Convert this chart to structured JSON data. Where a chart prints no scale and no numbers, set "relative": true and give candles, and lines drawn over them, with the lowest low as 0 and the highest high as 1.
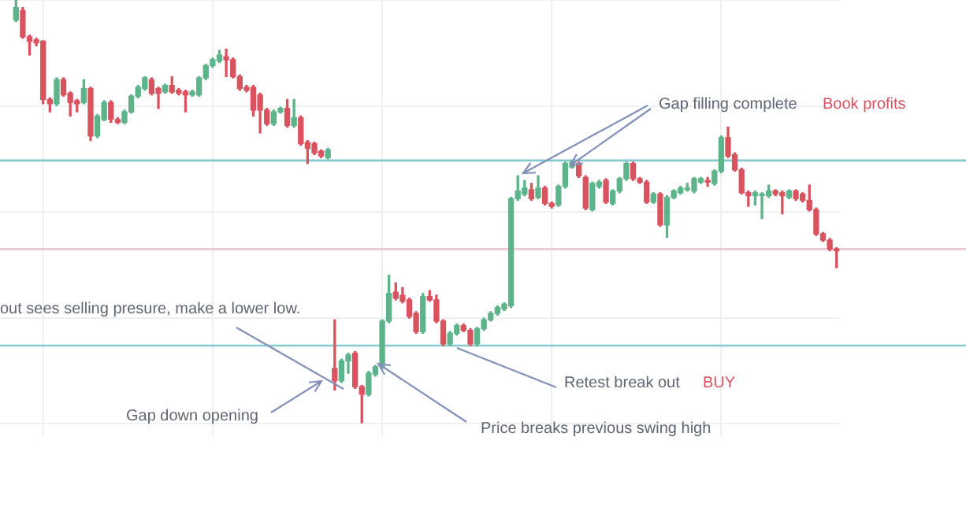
{
  "chart_data": {
    "type": "candlestick",
    "relative": true,
    "grid": true,
    "legend": false,
    "tick_labels": false,
    "categories": [
      null,
      null,
      null,
      null,
      null,
      null,
      null,
      null,
      null,
      null,
      null,
      null,
      null,
      null,
      null,
      null,
      null,
      null,
      null,
      null,
      null,
      null,
      null,
      null,
      null,
      null,
      null,
      null,
      null,
      null,
      null,
      null,
      null,
      null,
      null,
      null,
      null,
      null,
      null,
      null,
      null,
      null,
      null,
      null,
      null,
      null,
      null,
      null,
      null,
      null,
      null,
      null,
      null,
      null,
      null,
      null,
      null,
      null,
      null,
      null,
      null,
      null,
      null,
      null,
      null,
      null,
      null,
      null,
      null,
      null,
      null,
      null,
      null,
      null,
      null,
      null,
      null,
      null,
      null,
      null,
      null,
      null,
      null,
      null,
      null,
      null,
      null,
      null,
      null,
      null,
      null,
      null,
      null,
      null,
      null,
      null,
      null,
      null,
      null,
      null,
      null,
      null,
      null,
      null,
      null,
      null,
      null,
      null,
      null,
      null,
      null,
      null,
      null,
      null,
      null,
      null,
      null,
      null,
      null,
      null,
      null,
      null
    ],
    "ohlc": [
      [
        0.953,
        1,
        0.949,
        0.982
      ],
      [
        0.975,
        0.982,
        0.91,
        0.913
      ],
      [
        0.913,
        0.917,
        0.87,
        0.903
      ],
      [
        0.906,
        0.91,
        0.892,
        0.899
      ],
      [
        0.903,
        0.903,
        0.755,
        0.765
      ],
      [
        0.765,
        0.769,
        0.736,
        0.755
      ],
      [
        0.755,
        0.816,
        0.751,
        0.812
      ],
      [
        0.812,
        0.816,
        0.773,
        0.776
      ],
      [
        0.78,
        0.783,
        0.726,
        0.758
      ],
      [
        0.762,
        0.765,
        0.736,
        0.755
      ],
      [
        0.758,
        0.812,
        0.755,
        0.791
      ],
      [
        0.791,
        0.794,
        0.668,
        0.679
      ],
      [
        0.679,
        0.729,
        0.675,
        0.726
      ],
      [
        0.718,
        0.762,
        0.715,
        0.758
      ],
      [
        0.758,
        0.762,
        0.711,
        0.718
      ],
      [
        0.718,
        0.722,
        0.708,
        0.711
      ],
      [
        0.711,
        0.74,
        0.708,
        0.736
      ],
      [
        0.736,
        0.776,
        0.733,
        0.773
      ],
      [
        0.773,
        0.798,
        0.769,
        0.794
      ],
      [
        0.791,
        0.819,
        0.787,
        0.816
      ],
      [
        0.812,
        0.816,
        0.776,
        0.78
      ],
      [
        0.791,
        0.794,
        0.744,
        0.78
      ],
      [
        0.783,
        0.801,
        0.78,
        0.798
      ],
      [
        0.798,
        0.819,
        0.78,
        0.783
      ],
      [
        0.787,
        0.791,
        0.776,
        0.78
      ],
      [
        0.783,
        0.787,
        0.736,
        0.776
      ],
      [
        0.776,
        0.787,
        0.773,
        0.783
      ],
      [
        0.776,
        0.819,
        0.773,
        0.816
      ],
      [
        0.816,
        0.848,
        0.812,
        0.845
      ],
      [
        0.845,
        0.863,
        0.841,
        0.859
      ],
      [
        0.856,
        0.881,
        0.852,
        0.87
      ],
      [
        0.866,
        0.884,
        0.819,
        0.859
      ],
      [
        0.859,
        0.863,
        0.816,
        0.819
      ],
      [
        0.819,
        0.823,
        0.787,
        0.791
      ],
      [
        0.794,
        0.798,
        0.783,
        0.787
      ],
      [
        0.794,
        0.798,
        0.726,
        0.74
      ],
      [
        0.776,
        0.78,
        0.686,
        0.74
      ],
      [
        0.74,
        0.744,
        0.704,
        0.708
      ],
      [
        0.708,
        0.74,
        0.704,
        0.736
      ],
      [
        0.736,
        0.747,
        0.733,
        0.744
      ],
      [
        0.744,
        0.765,
        0.7,
        0.704
      ],
      [
        0.704,
        0.765,
        0.7,
        0.722
      ],
      [
        0.722,
        0.726,
        0.657,
        0.661
      ],
      [
        0.664,
        0.668,
        0.614,
        0.65
      ],
      [
        0.661,
        0.664,
        0.635,
        0.639
      ],
      [
        0.643,
        0.646,
        0.628,
        0.632
      ],
      [
        0.628,
        0.65,
        0.625,
        0.646
      ],
      [
        0.13,
        0.245,
        0.079,
        0.101
      ],
      [
        0.101,
        0.152,
        0.097,
        0.148
      ],
      [
        0.148,
        0.166,
        0.119,
        0.162
      ],
      [
        0.166,
        0.17,
        0.083,
        0.087
      ],
      [
        0.087,
        0.09,
        0,
        0.069
      ],
      [
        0.069,
        0.123,
        0.065,
        0.119
      ],
      [
        0.116,
        0.137,
        0.112,
        0.134
      ],
      [
        0.134,
        0.245,
        0.13,
        0.242
      ],
      [
        0.242,
        0.35,
        0.238,
        0.307
      ],
      [
        0.31,
        0.332,
        0.292,
        0.296
      ],
      [
        0.303,
        0.321,
        0.285,
        0.289
      ],
      [
        0.292,
        0.296,
        0.249,
        0.253
      ],
      [
        0.26,
        0.264,
        0.213,
        0.217
      ],
      [
        0.217,
        0.307,
        0.213,
        0.3
      ],
      [
        0.3,
        0.314,
        0.289,
        0.292
      ],
      [
        0.292,
        0.303,
        0.238,
        0.242
      ],
      [
        0.242,
        0.245,
        0.184,
        0.188
      ],
      [
        0.188,
        0.217,
        0.184,
        0.213
      ],
      [
        0.213,
        0.235,
        0.209,
        0.231
      ],
      [
        0.231,
        0.235,
        0.217,
        0.22
      ],
      [
        0.22,
        0.224,
        0.184,
        0.188
      ],
      [
        0.188,
        0.227,
        0.184,
        0.224
      ],
      [
        0.224,
        0.249,
        0.22,
        0.245
      ],
      [
        0.245,
        0.264,
        0.242,
        0.26
      ],
      [
        0.26,
        0.278,
        0.256,
        0.274
      ],
      [
        0.271,
        0.285,
        0.267,
        0.282
      ],
      [
        0.278,
        0.534,
        0.274,
        0.531
      ],
      [
        0.531,
        0.585,
        0.527,
        0.549
      ],
      [
        0.542,
        0.574,
        0.538,
        0.556
      ],
      [
        0.552,
        0.567,
        0.527,
        0.531
      ],
      [
        0.534,
        0.585,
        0.531,
        0.556
      ],
      [
        0.556,
        0.56,
        0.516,
        0.52
      ],
      [
        0.52,
        0.523,
        0.509,
        0.513
      ],
      [
        0.516,
        0.563,
        0.513,
        0.56
      ],
      [
        0.56,
        0.617,
        0.556,
        0.614
      ],
      [
        0.606,
        0.621,
        0.603,
        0.617
      ],
      [
        0.614,
        0.617,
        0.581,
        0.585
      ],
      [
        0.581,
        0.585,
        0.505,
        0.509
      ],
      [
        0.505,
        0.57,
        0.502,
        0.567
      ],
      [
        0.56,
        0.574,
        0.556,
        0.57
      ],
      [
        0.574,
        0.578,
        0.52,
        0.523
      ],
      [
        0.52,
        0.552,
        0.516,
        0.549
      ],
      [
        0.549,
        0.581,
        0.545,
        0.578
      ],
      [
        0.578,
        0.617,
        0.574,
        0.614
      ],
      [
        0.614,
        0.617,
        0.574,
        0.578
      ],
      [
        0.578,
        0.581,
        0.567,
        0.57
      ],
      [
        0.57,
        0.574,
        0.52,
        0.523
      ],
      [
        0.523,
        0.545,
        0.52,
        0.542
      ],
      [
        0.542,
        0.545,
        0.466,
        0.469
      ],
      [
        0.469,
        0.538,
        0.44,
        0.534
      ],
      [
        0.534,
        0.552,
        0.531,
        0.549
      ],
      [
        0.545,
        0.56,
        0.542,
        0.556
      ],
      [
        0.552,
        0.567,
        0.549,
        0.556
      ],
      [
        0.549,
        0.581,
        0.545,
        0.578
      ],
      [
        0.57,
        0.581,
        0.567,
        0.578
      ],
      [
        0.574,
        0.581,
        0.56,
        0.57
      ],
      [
        0.567,
        0.599,
        0.563,
        0.596
      ],
      [
        0.596,
        0.679,
        0.592,
        0.675
      ],
      [
        0.675,
        0.7,
        0.628,
        0.632
      ],
      [
        0.635,
        0.639,
        0.596,
        0.599
      ],
      [
        0.599,
        0.603,
        0.542,
        0.545
      ],
      [
        0.545,
        0.549,
        0.513,
        0.538
      ],
      [
        0.538,
        0.549,
        0.516,
        0.545
      ],
      [
        0.538,
        0.545,
        0.484,
        0.542
      ],
      [
        0.538,
        0.563,
        0.534,
        0.549
      ],
      [
        0.549,
        0.552,
        0.538,
        0.542
      ],
      [
        0.545,
        0.549,
        0.495,
        0.538
      ],
      [
        0.534,
        0.552,
        0.531,
        0.549
      ],
      [
        0.549,
        0.552,
        0.527,
        0.531
      ],
      [
        0.542,
        0.545,
        0.523,
        0.527
      ],
      [
        0.527,
        0.563,
        0.502,
        0.505
      ],
      [
        0.505,
        0.509,
        0.444,
        0.448
      ],
      [
        0.448,
        0.451,
        0.43,
        0.433
      ],
      [
        0.433,
        0.437,
        0.408,
        0.412
      ],
      [
        0.412,
        0.415,
        0.368,
        0.408
      ]
    ],
    "colors": [
      "#5db38a",
      "#d9535f",
      "#d9535f",
      "#d9535f",
      "#d9535f",
      "#d9535f",
      "#5db38a",
      "#d9535f",
      "#d9535f",
      "#d9535f",
      "#5db38a",
      "#d9535f",
      "#5db38a",
      "#5db38a",
      "#d9535f",
      "#d9535f",
      "#5db38a",
      "#5db38a",
      "#5db38a",
      "#5db38a",
      "#d9535f",
      "#d9535f",
      "#5db38a",
      "#d9535f",
      "#d9535f",
      "#d9535f",
      "#5db38a",
      "#5db38a",
      "#5db38a",
      "#5db38a",
      "#5db38a",
      "#d9535f",
      "#d9535f",
      "#d9535f",
      "#d9535f",
      "#d9535f",
      "#d9535f",
      "#d9535f",
      "#5db38a",
      "#5db38a",
      "#d9535f",
      "#5db38a",
      "#d9535f",
      "#d9535f",
      "#d9535f",
      "#d9535f",
      "#5db38a",
      "#d9535f",
      "#5db38a",
      "#5db38a",
      "#d9535f",
      "#d9535f",
      "#5db38a",
      "#5db38a",
      "#5db38a",
      "#5db38a",
      "#d9535f",
      "#d9535f",
      "#d9535f",
      "#d9535f",
      "#5db38a",
      "#d9535f",
      "#d9535f",
      "#d9535f",
      "#5db38a",
      "#5db38a",
      "#d9535f",
      "#d9535f",
      "#5db38a",
      "#5db38a",
      "#5db38a",
      "#5db38a",
      "#5db38a",
      "#5db38a",
      "#5db38a",
      "#5db38a",
      "#d9535f",
      "#5db38a",
      "#d9535f",
      "#d9535f",
      "#5db38a",
      "#5db38a",
      "#5db38a",
      "#d9535f",
      "#d9535f",
      "#5db38a",
      "#5db38a",
      "#d9535f",
      "#5db38a",
      "#5db38a",
      "#5db38a",
      "#d9535f",
      "#d9535f",
      "#d9535f",
      "#5db38a",
      "#d9535f",
      "#5db38a",
      "#5db38a",
      "#5db38a",
      "#5db38a",
      "#5db38a",
      "#5db38a",
      "#d9535f",
      "#5db38a",
      "#5db38a",
      "#d9535f",
      "#d9535f",
      "#d9535f",
      "#d9535f",
      "#5db38a",
      "#5db38a",
      "#5db38a",
      "#d9535f",
      "#d9535f",
      "#5db38a",
      "#d9535f",
      "#d9535f",
      "#d9535f",
      "#d9535f",
      "#d9535f",
      "#d9535f",
      "#d9535f"
    ],
    "ref_lines": [
      {
        "axis": "y",
        "value": 0.621,
        "color": "#86c9d0"
      },
      {
        "axis": "y",
        "value": 0.184,
        "color": "#86c9d0"
      },
      {
        "axis": "y",
        "value": 0.412,
        "color": "#ecc9cd"
      }
    ],
    "annotations": [
      "out sees selling presure, make a lower low.",
      "Gap down opening",
      "Price breaks previous swing high",
      "Retest break out",
      "BUY",
      "Gap filling complete",
      "Book profits"
    ]
  }
}
